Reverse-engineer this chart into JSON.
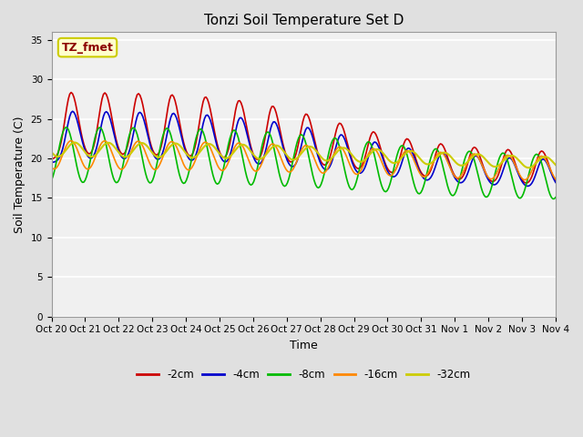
{
  "title": "Tonzi Soil Temperature Set D",
  "xlabel": "Time",
  "ylabel": "Soil Temperature (C)",
  "annotation": "TZ_fmet",
  "annotation_color": "#8B0000",
  "annotation_bg": "#FFFFCC",
  "annotation_border": "#CCCC00",
  "ylim": [
    0,
    36
  ],
  "yticks": [
    0,
    5,
    10,
    15,
    20,
    25,
    30,
    35
  ],
  "xlabels": [
    "Oct 20",
    "Oct 21",
    "Oct 22",
    "Oct 23",
    "Oct 24",
    "Oct 25",
    "Oct 26",
    "Oct 27",
    "Oct 28",
    "Oct 29",
    "Oct 30",
    "Oct 31",
    "Nov 1",
    "Nov 2",
    "Nov 3",
    "Nov 4"
  ],
  "series": [
    {
      "label": "-2cm",
      "color": "#CC0000",
      "lw": 1.2
    },
    {
      "label": "-4cm",
      "color": "#0000CC",
      "lw": 1.2
    },
    {
      "label": "-8cm",
      "color": "#00BB00",
      "lw": 1.2
    },
    {
      "label": "-16cm",
      "color": "#FF8800",
      "lw": 1.2
    },
    {
      "label": "-32cm",
      "color": "#CCCC00",
      "lw": 1.5
    }
  ],
  "bg_color": "#E0E0E0",
  "plot_bg": "#F0F0F0",
  "grid_color": "#FFFFFF",
  "figsize": [
    6.4,
    4.8
  ],
  "dpi": 100
}
